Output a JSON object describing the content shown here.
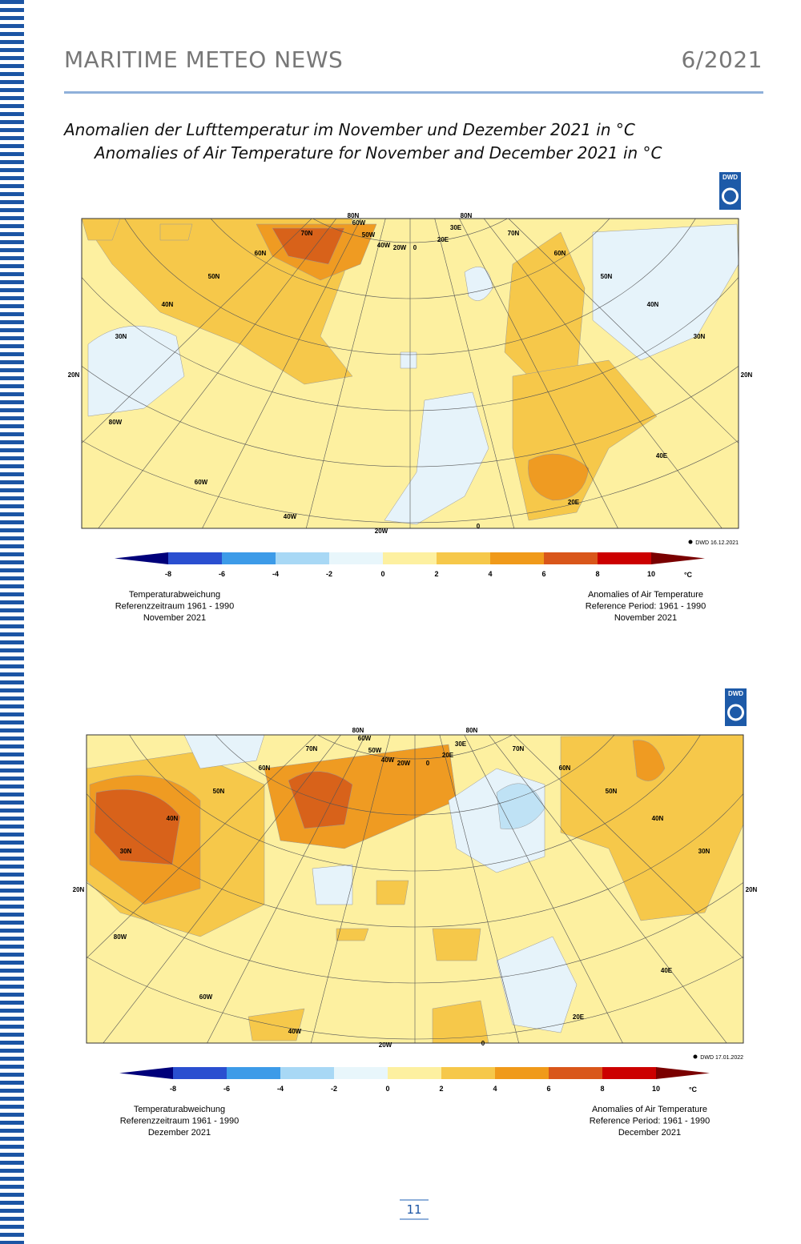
{
  "header": {
    "title": "MARITIME METEO NEWS",
    "issue": "6/2021"
  },
  "heading": {
    "line_de": "Anomalien der Lufttemperatur im November und Dezember 2021 in °C",
    "line_en": "Anomalies of Air Temperature for November and December 2021 in °C"
  },
  "maps": [
    {
      "logo": "DWD",
      "grid_labels": [
        "80N",
        "80N",
        "70N",
        "60W",
        "50W",
        "40W",
        "20W",
        "0",
        "20E",
        "30E",
        "70N",
        "60N",
        "60N",
        "50N",
        "50N",
        "40N",
        "40N",
        "30N",
        "30N",
        "20N",
        "20N",
        "80W",
        "60W",
        "40W",
        "20W",
        "0",
        "20E",
        "40E"
      ],
      "stamp": "DWD 16.12.2021",
      "colorbar_labels": [
        "-8",
        "-6",
        "-4",
        "-2",
        "0",
        "2",
        "4",
        "6",
        "8",
        "10"
      ],
      "unit": "°C",
      "caption_de": [
        "Temperaturabweichung",
        "Referenzzeitraum 1961 - 1990",
        "November 2021"
      ],
      "caption_en": [
        "Anomalies of Air Temperature",
        "Reference Period: 1961 - 1990",
        "November 2021"
      ]
    },
    {
      "logo": "DWD",
      "grid_labels": [
        "80N",
        "80N",
        "70N",
        "60W",
        "50W",
        "40W",
        "20W",
        "0",
        "20E",
        "30E",
        "70N",
        "60N",
        "60N",
        "50N",
        "50N",
        "40N",
        "40N",
        "30N",
        "30N",
        "20N",
        "20N",
        "80W",
        "60W",
        "40W",
        "20W",
        "0",
        "20E",
        "40E"
      ],
      "stamp": "DWD 17.01.2022",
      "colorbar_labels": [
        "-8",
        "-6",
        "-4",
        "-2",
        "0",
        "2",
        "4",
        "6",
        "8",
        "10"
      ],
      "unit": "°C",
      "caption_de": [
        "Temperaturabweichung",
        "Referenzzeitraum 1961 - 1990",
        "Dezember 2021"
      ],
      "caption_en": [
        "Anomalies of Air Temperature",
        "Reference Period: 1961 - 1990",
        "December 2021"
      ]
    }
  ],
  "footer": {
    "page": "11"
  }
}
